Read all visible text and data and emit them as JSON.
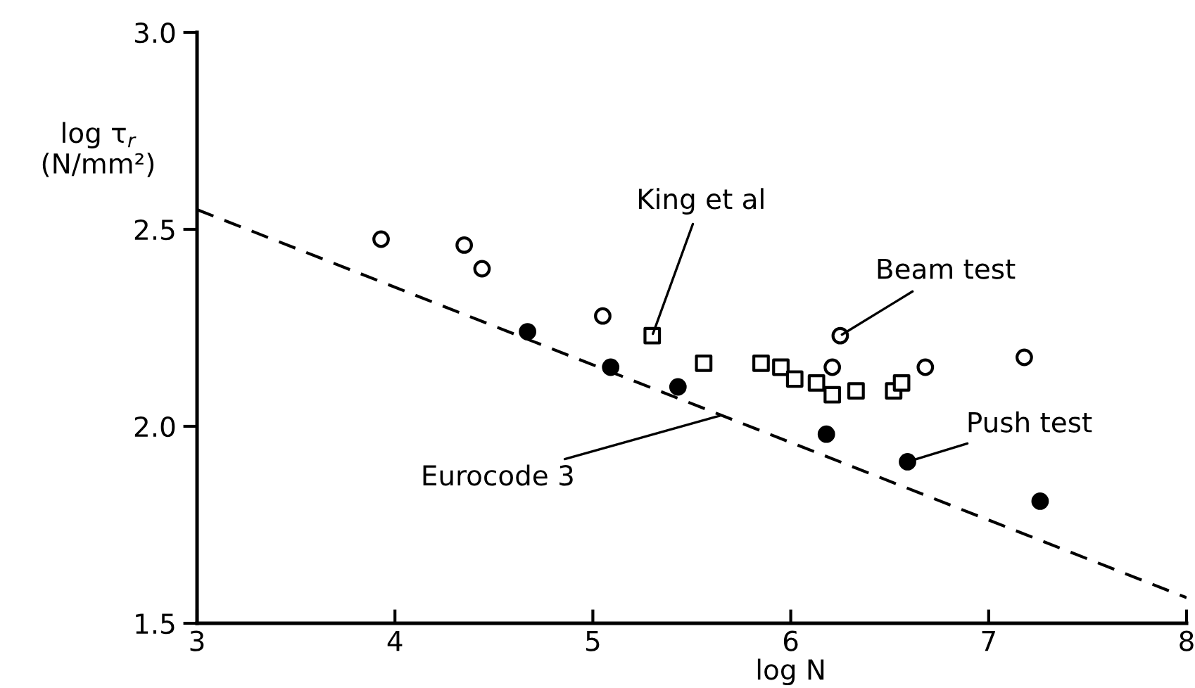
{
  "chart_data": {
    "type": "scatter",
    "xlabel": "log N",
    "ylabel": "log τ$_{r}$\n(N/mm²)",
    "xlim": [
      3,
      8
    ],
    "ylim": [
      1.5,
      3.0
    ],
    "xticks": [
      3,
      4,
      5,
      6,
      7,
      8
    ],
    "yticks": [
      1.5,
      {
        "value": 2,
        "label": "2.0"
      },
      2.5,
      {
        "value": 3,
        "label": "3.0"
      }
    ],
    "grid": false,
    "legend": false,
    "series": [
      {
        "marker": "circle",
        "color": "#ffffff",
        "x": [
          3.93,
          4.35,
          4.44,
          5.05,
          6.25,
          6.21,
          6.68,
          7.18
        ],
        "values": [
          2.475,
          2.46,
          2.4,
          2.28,
          2.23,
          2.15,
          2.15,
          2.175
        ]
      },
      {
        "marker": "circle",
        "color": "#000000",
        "x": [
          4.67,
          5.09,
          5.43,
          6.18,
          6.59,
          7.26
        ],
        "values": [
          2.24,
          2.15,
          2.1,
          1.98,
          1.91,
          1.81
        ]
      },
      {
        "marker": "square",
        "color": "#ffffff",
        "x": [
          5.3,
          5.56,
          5.85,
          5.95,
          6.02,
          6.13,
          6.21,
          6.33,
          6.52,
          6.56
        ],
        "values": [
          2.23,
          2.16,
          2.16,
          2.15,
          2.12,
          2.11,
          2.08,
          2.09,
          2.09,
          2.11
        ]
      },
      {
        "type": "line",
        "marker": "none",
        "line_style": "dashed",
        "color": "#000000",
        "x": [
          3,
          8
        ],
        "values": [
          2.55,
          1.565
        ]
      }
    ],
    "annotations": [
      {
        "text": "King et al",
        "x": 5.3,
        "y": 2.23
      },
      {
        "text": "Beam test",
        "x": 6.25,
        "y": 2.23
      },
      {
        "text": "Push test",
        "x": 6.59,
        "y": 1.91
      },
      {
        "text": "Eurocode 3",
        "x": 5.65,
        "y": 2.028
      }
    ]
  }
}
